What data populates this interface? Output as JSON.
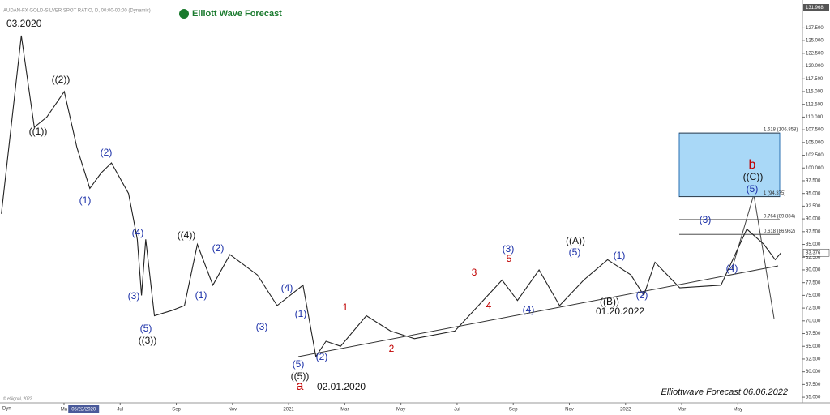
{
  "chart_data": {
    "type": "line",
    "title": "AUDAN-FX GOLD-SILVER SPOT RATIO, D, 00:00-00:00 (Dynamic)",
    "logo": "Elliott Wave Forecast",
    "footer": "Elliottwave Forecast  06.06.2022",
    "copyright": "© eSignal, 2022",
    "corner_label": "Dyn",
    "top_price_label": {
      "value": 131.968,
      "label": "131.968"
    },
    "last_price_label": {
      "value": 83.376,
      "label": "83.376"
    },
    "cursor_date": {
      "value": 4.7,
      "label": "05/22/2020"
    },
    "series": [
      {
        "name": "Gold-Silver Ratio",
        "color": "#222222",
        "x": [
          1.77,
          2.48,
          2.94,
          3.39,
          4.01,
          4.46,
          4.92,
          5.32,
          5.69,
          6.3,
          6.61,
          6.76,
          6.91,
          7.22,
          7.83,
          8.29,
          8.75,
          9.3,
          9.91,
          10.89,
          11.59,
          12.51,
          12.97,
          13.33,
          13.85,
          14.77,
          15.63,
          16.48,
          17.92,
          19.6,
          20.15,
          20.92,
          21.65,
          22.51,
          23.36,
          24.19,
          24.65,
          25.05,
          25.93,
          27.4,
          28.32,
          28.93,
          29.33,
          29.54
        ],
        "values": [
          91,
          126,
          108,
          110,
          115,
          104,
          96,
          99,
          101,
          95,
          86,
          75,
          86,
          71,
          72,
          73,
          85,
          77,
          83,
          79,
          73,
          77,
          63,
          66,
          65,
          71,
          68,
          66.5,
          68,
          78,
          74,
          80,
          73,
          78,
          82,
          79,
          75,
          81.5,
          76.5,
          77,
          88,
          85,
          82,
          83.376
        ]
      }
    ],
    "xlim": [
      1.72,
      30.3
    ],
    "xticks": [
      {
        "value": 4,
        "label": "Ma"
      },
      {
        "value": 6,
        "label": "Jul"
      },
      {
        "value": 8,
        "label": "Sep"
      },
      {
        "value": 10,
        "label": "Nov"
      },
      {
        "value": 12,
        "label": "2021"
      },
      {
        "value": 14,
        "label": "Mar"
      },
      {
        "value": 16,
        "label": "May"
      },
      {
        "value": 18,
        "label": "Jul"
      },
      {
        "value": 20,
        "label": "Sep"
      },
      {
        "value": 22,
        "label": "Nov"
      },
      {
        "value": 24,
        "label": "2022"
      },
      {
        "value": 26,
        "label": "Mar"
      },
      {
        "value": 28,
        "label": "May"
      }
    ],
    "ylim": [
      53.9,
      132.5
    ],
    "yticks": [
      {
        "value": 55,
        "label": "55.000"
      },
      {
        "value": 57.5,
        "label": "57.500"
      },
      {
        "value": 60,
        "label": "60.000"
      },
      {
        "value": 62.5,
        "label": "62.500"
      },
      {
        "value": 65,
        "label": "65.000"
      },
      {
        "value": 67.5,
        "label": "67.500"
      },
      {
        "value": 70,
        "label": "70.000"
      },
      {
        "value": 72.5,
        "label": "72.500"
      },
      {
        "value": 75,
        "label": "75.000"
      },
      {
        "value": 77.5,
        "label": "77.500"
      },
      {
        "value": 80,
        "label": "80.000"
      },
      {
        "value": 82.5,
        "label": "82.500"
      },
      {
        "value": 85,
        "label": "85.000"
      },
      {
        "value": 87.5,
        "label": "87.500"
      },
      {
        "value": 90,
        "label": "90.000"
      },
      {
        "value": 92.5,
        "label": "92.500"
      },
      {
        "value": 95,
        "label": "95.000"
      },
      {
        "value": 97.5,
        "label": "97.500"
      },
      {
        "value": 100,
        "label": "100.000"
      },
      {
        "value": 102.5,
        "label": "102.500"
      },
      {
        "value": 105,
        "label": "105.000"
      },
      {
        "value": 107.5,
        "label": "107.500"
      },
      {
        "value": 110,
        "label": "110.000"
      },
      {
        "value": 112.5,
        "label": "112.500"
      },
      {
        "value": 115,
        "label": "115.000"
      },
      {
        "value": 117.5,
        "label": "117.500"
      },
      {
        "value": 120,
        "label": "120.000"
      },
      {
        "value": 122.5,
        "label": "122.500"
      },
      {
        "value": 125,
        "label": "125.000"
      },
      {
        "value": 127.5,
        "label": "127.500"
      }
    ],
    "fib_levels": [
      {
        "value": 106.858,
        "label": "1.618 (106.858)"
      },
      {
        "value": 94.375,
        "label": "1 (94.375)"
      },
      {
        "value": 89.884,
        "label": "0.764 (89.884)"
      },
      {
        "value": 86.962,
        "label": "0.618 (86.962)"
      }
    ],
    "target_box": {
      "color": "#a9d8f7"
    },
    "annotations": [
      {
        "text": "03.2020",
        "color": "#111111"
      },
      {
        "text": "((1))",
        "color": "#111111"
      },
      {
        "text": "((2))",
        "color": "#111111"
      },
      {
        "text": "(1)",
        "color": "#1a2fa8"
      },
      {
        "text": "(2)",
        "color": "#1a2fa8"
      },
      {
        "text": "(4)",
        "color": "#1a2fa8"
      },
      {
        "text": "(3)",
        "color": "#1a2fa8"
      },
      {
        "text": "(5)",
        "color": "#1a2fa8"
      },
      {
        "text": "((3))",
        "color": "#111111"
      },
      {
        "text": "((4))",
        "color": "#111111"
      },
      {
        "text": "(1)",
        "color": "#1a2fa8"
      },
      {
        "text": "(2)",
        "color": "#1a2fa8"
      },
      {
        "text": "(3)",
        "color": "#1a2fa8"
      },
      {
        "text": "(4)",
        "color": "#1a2fa8"
      },
      {
        "text": "(1)",
        "color": "#1a2fa8"
      },
      {
        "text": "(5)",
        "color": "#1a2fa8"
      },
      {
        "text": "((5))",
        "color": "#111111"
      },
      {
        "text": "a",
        "color": "#c00000"
      },
      {
        "text": "02.01.2020",
        "color": "#111111"
      },
      {
        "text": "(2)",
        "color": "#1a2fa8"
      },
      {
        "text": "1",
        "color": "#c00000"
      },
      {
        "text": "2",
        "color": "#c00000"
      },
      {
        "text": "3",
        "color": "#c00000"
      },
      {
        "text": "4",
        "color": "#c00000"
      },
      {
        "text": "5",
        "color": "#c00000"
      },
      {
        "text": "(3)",
        "color": "#1a2fa8"
      },
      {
        "text": "(4)",
        "color": "#1a2fa8"
      },
      {
        "text": "((A))",
        "color": "#111111"
      },
      {
        "text": "(5)",
        "color": "#1a2fa8"
      },
      {
        "text": "((B))",
        "color": "#111111"
      },
      {
        "text": "01.20.2022",
        "color": "#111111"
      },
      {
        "text": "(1)",
        "color": "#1a2fa8"
      },
      {
        "text": "(2)",
        "color": "#1a2fa8"
      },
      {
        "text": "(3)",
        "color": "#1a2fa8"
      },
      {
        "text": "(4)",
        "color": "#1a2fa8"
      },
      {
        "text": "b",
        "color": "#c00000"
      },
      {
        "text": "((C))",
        "color": "#111111"
      },
      {
        "text": "(5)",
        "color": "#1a2fa8"
      }
    ]
  }
}
